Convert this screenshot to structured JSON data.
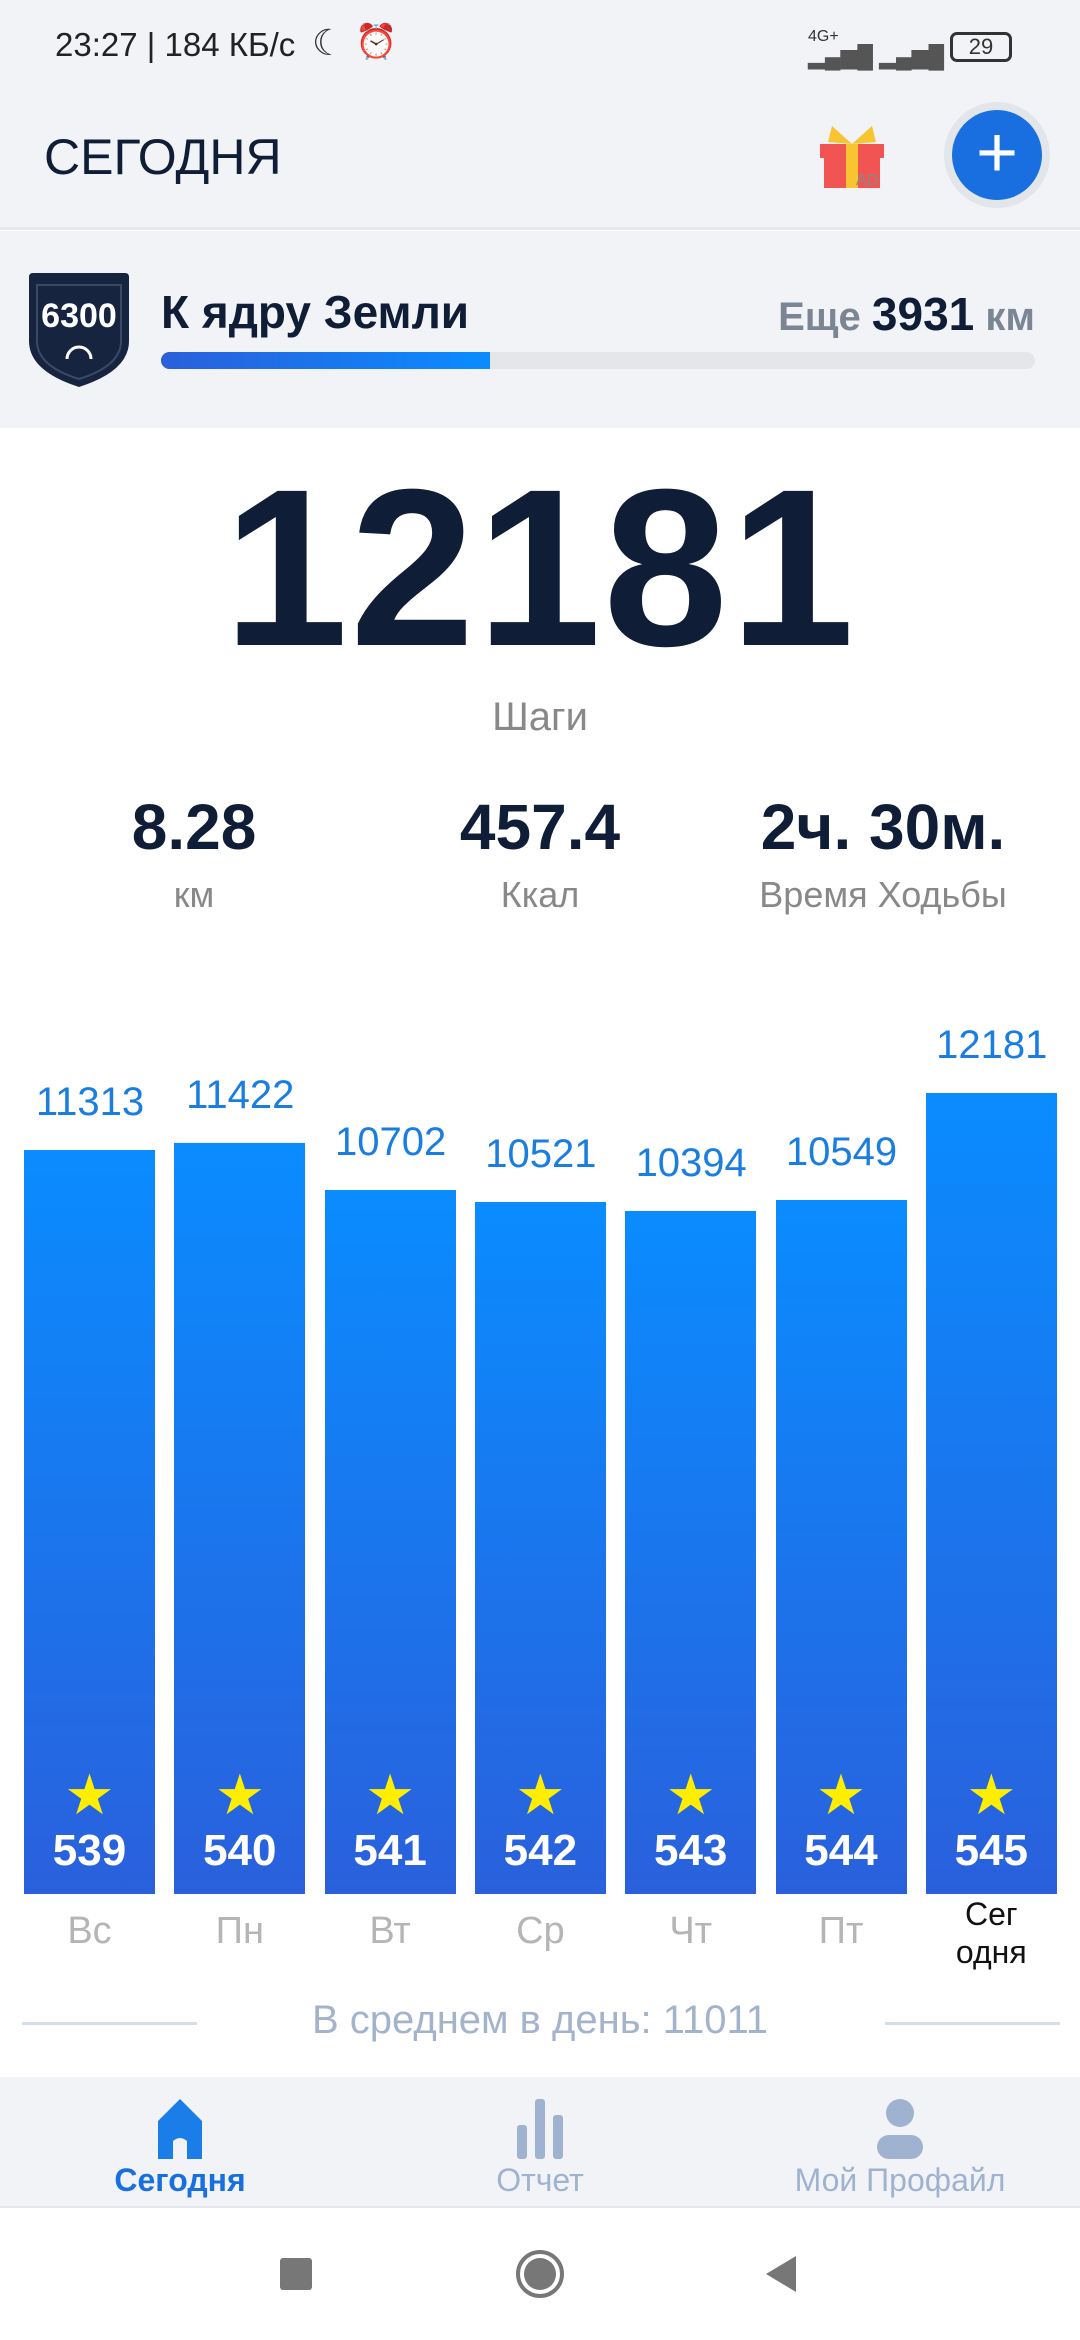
{
  "status_bar": {
    "text": "23:27 | 184 КБ/с",
    "battery": "29",
    "network": "4G+"
  },
  "header": {
    "title": "СЕГОДНЯ",
    "gift_badge": "AD"
  },
  "challenge": {
    "badge": "6300",
    "title": "К ядру Земли",
    "remaining_prefix": "Еще",
    "remaining_value": "3931",
    "remaining_unit": "км",
    "progress_fraction": 0.376
  },
  "today": {
    "steps": "12181",
    "steps_label": "Шаги"
  },
  "stats": [
    {
      "value": "8.28",
      "label": "км"
    },
    {
      "value": "457.4",
      "label": "Ккал"
    },
    {
      "value": "2ч. 30м.",
      "label": "Время Ходьбы"
    }
  ],
  "chart_data": {
    "type": "bar",
    "categories": [
      "Вс",
      "Пн",
      "Вт",
      "Ср",
      "Чт",
      "Пт",
      "Сегодня"
    ],
    "values": [
      11313,
      11422,
      10702,
      10521,
      10394,
      10549,
      12181
    ],
    "badges": [
      "539",
      "540",
      "541",
      "542",
      "543",
      "544",
      "545"
    ],
    "today_label_lines": [
      "Сег",
      "одня"
    ],
    "colors": {
      "bar_top": "#0a8cff",
      "bar_bottom": "#2a60dc",
      "value_label": "#1a7de0",
      "star": "#ffee00"
    }
  },
  "average": {
    "text": "В среднем в день: 11011"
  },
  "bottom_nav": [
    {
      "label": "Сегодня",
      "icon": "home-icon",
      "active": true
    },
    {
      "label": "Отчет",
      "icon": "bar-chart-icon"
    },
    {
      "label": "Мой Профайл",
      "icon": "profile-icon"
    }
  ],
  "colors": {
    "accent": "#1a6fe0",
    "inactive": "#9fb2d0"
  }
}
